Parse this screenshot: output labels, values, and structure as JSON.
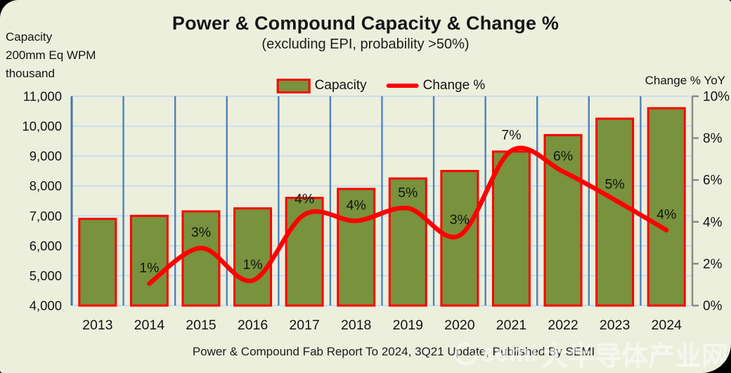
{
  "title": "Power & Compound Capacity & Change %",
  "subtitle": "(excluding EPI, probability >50%)",
  "left_axis_title_lines": [
    "Capacity",
    "200mm Eq WPM",
    "thousand"
  ],
  "right_axis_title": "Change % YoY",
  "legend": {
    "capacity_label": "Capacity",
    "change_label": "Change %"
  },
  "footer": "Power & Compound Fab Report To 2024, 3Q21 Update, Published By SEMI",
  "watermark": {
    "logo_text": "semi",
    "text": "大半导体产业网"
  },
  "colors": {
    "background": "#ECEFDC",
    "bar_fill": "#78923D",
    "bar_border": "#FE0000",
    "line": "#FE0000",
    "vertical_grid": "#4F81BD",
    "horizontal_grid": "#C9DCF0",
    "left_axis": "#4476A9",
    "right_axis": "#8A8A8A",
    "text": "#141414"
  },
  "chart_data": {
    "type": "bar",
    "combo": "bar+line",
    "title": "Power & Compound Capacity & Change %",
    "subtitle": "(excluding EPI, probability >50%)",
    "xlabel": "",
    "ylabel_left": "Capacity 200mm Eq WPM thousand",
    "ylabel_right": "Change % YoY",
    "legend_position": "top-center",
    "grid": {
      "vertical": true,
      "horizontal": true
    },
    "categories": [
      "2013",
      "2014",
      "2015",
      "2016",
      "2017",
      "2018",
      "2019",
      "2020",
      "2021",
      "2022",
      "2023",
      "2024"
    ],
    "series": [
      {
        "name": "Capacity",
        "type": "bar",
        "axis": "left",
        "values": [
          6900,
          7000,
          7150,
          7250,
          7600,
          7900,
          8250,
          8500,
          9150,
          9700,
          10250,
          10600
        ]
      },
      {
        "name": "Change %",
        "type": "line",
        "axis": "right",
        "start_index": 1,
        "values": [
          1.05,
          2.75,
          1.2,
          4.35,
          4.05,
          4.65,
          3.35,
          7.4,
          6.4,
          5.05,
          3.6
        ],
        "point_labels": [
          "1%",
          "3%",
          "1%",
          "4%",
          "4%",
          "5%",
          "3%",
          "7%",
          "6%",
          "5%",
          "4%"
        ]
      }
    ],
    "left_axis": {
      "min": 4000,
      "max": 11000,
      "step": 1000,
      "tick_labels": [
        "4,000",
        "5,000",
        "6,000",
        "7,000",
        "8,000",
        "9,000",
        "10,000",
        "11,000"
      ]
    },
    "right_axis": {
      "min": 0,
      "max": 10,
      "step": 2,
      "tick_labels": [
        "0%",
        "2%",
        "4%",
        "6%",
        "8%",
        "10%"
      ]
    }
  }
}
